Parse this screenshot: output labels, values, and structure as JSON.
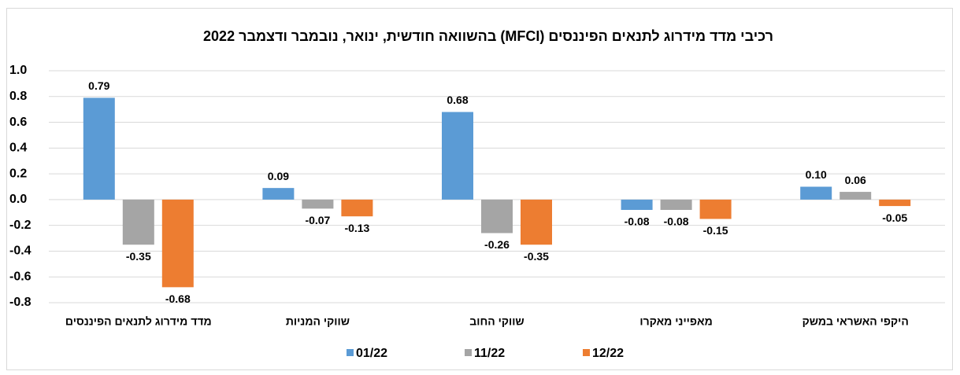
{
  "chart_data": {
    "type": "bar",
    "title": "רכיבי מדד מידרוג לתנאים הפיננסים (MFCI) בהשוואה חודשית, ינואר, נובמבר ודצמבר 2022",
    "categories": [
      "מדד מידרוג לתנאים הפיננסים",
      "שווקי המניות",
      "שווקי החוב",
      "מאפייני מאקרו",
      "היקפי האשראי במשק"
    ],
    "series": [
      {
        "name": "01/22",
        "color": "#5b9bd5",
        "values": [
          0.79,
          0.09,
          0.68,
          -0.08,
          0.1
        ],
        "value_labels": [
          "0.79",
          "0.09",
          "0.68",
          "-0.08",
          "0.10"
        ]
      },
      {
        "name": "11/22",
        "color": "#a5a5a5",
        "values": [
          -0.35,
          -0.07,
          -0.26,
          -0.08,
          0.06
        ],
        "value_labels": [
          "-0.35",
          "-0.07",
          "-0.26",
          "-0.08",
          "0.06"
        ]
      },
      {
        "name": "12/22",
        "color": "#ed7d31",
        "values": [
          -0.68,
          -0.13,
          -0.35,
          -0.15,
          -0.05
        ],
        "value_labels": [
          "-0.68",
          "-0.13",
          "-0.35",
          "-0.15",
          "-0.05"
        ]
      }
    ],
    "ylim": [
      -0.8,
      1.0
    ],
    "yticks": [
      {
        "value": 1.0,
        "label": "1.0"
      },
      0.8,
      0.6,
      0.4,
      0.2,
      {
        "value": 0.0,
        "label": "0.0"
      },
      -0.2,
      -0.4,
      -0.6,
      -0.8
    ],
    "grid": true,
    "legend": "bottom"
  }
}
